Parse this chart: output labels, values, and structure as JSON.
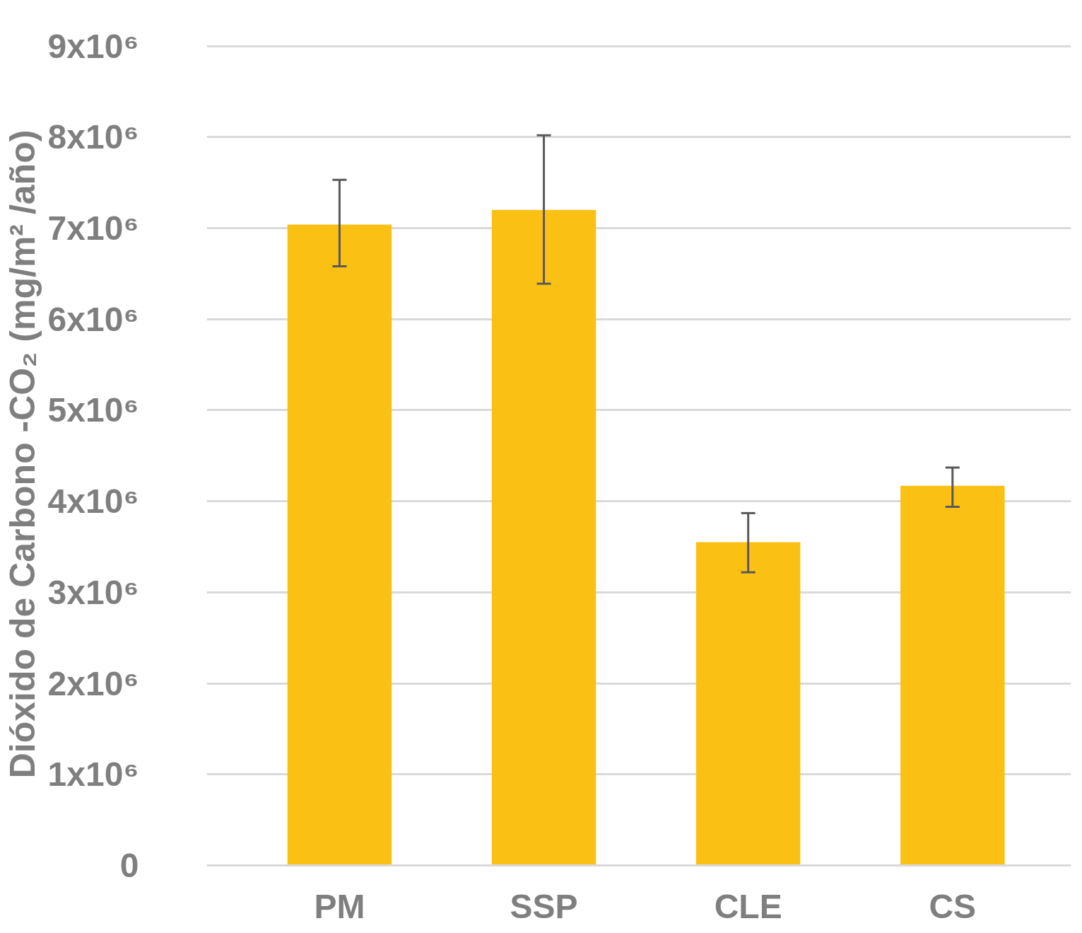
{
  "chart_data": {
    "type": "bar",
    "ylabel": "Dióxido de Carbono -CO₂ (mg/m² /año)",
    "categories": [
      "PM",
      "SSP",
      "CLE",
      "CS"
    ],
    "values": [
      7040000,
      7200000,
      3550000,
      4170000
    ],
    "errors": [
      [
        6580000,
        7530000
      ],
      [
        6390000,
        8020000
      ],
      [
        3220000,
        3870000
      ],
      [
        3940000,
        4370000
      ]
    ],
    "color": "#fbc014",
    "ylim": [
      0,
      9000000
    ],
    "yticks": [
      0,
      {
        "value": 1000000,
        "label": "1x10⁶"
      },
      {
        "value": 2000000,
        "label": "2x10⁶"
      },
      {
        "value": 3000000,
        "label": "3x10⁶"
      },
      {
        "value": 4000000,
        "label": "4x10⁶"
      },
      {
        "value": 5000000,
        "label": "5x10⁶"
      },
      {
        "value": 6000000,
        "label": "6x10⁶"
      },
      {
        "value": 7000000,
        "label": "7x10⁶"
      },
      {
        "value": 8000000,
        "label": "8x10⁶"
      },
      {
        "value": 9000000,
        "label": "9x10⁶"
      }
    ],
    "grid": "y"
  }
}
